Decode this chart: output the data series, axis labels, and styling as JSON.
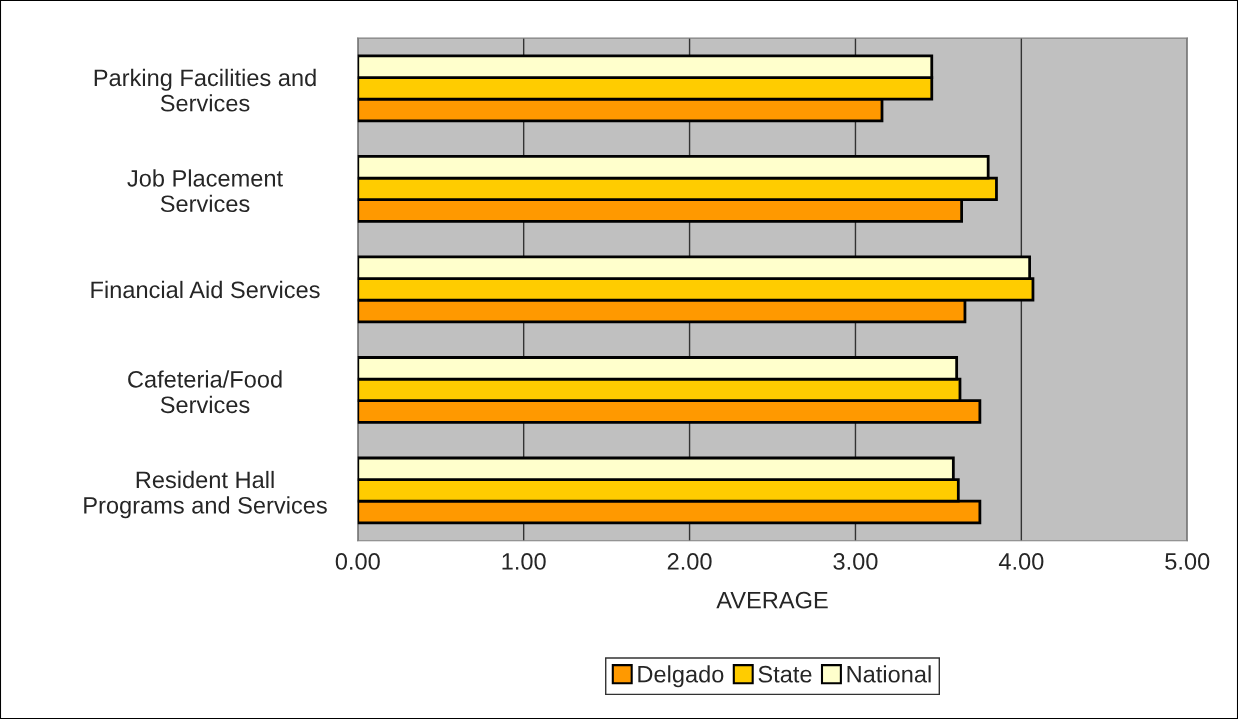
{
  "chart_data": {
    "type": "bar",
    "orientation": "horizontal",
    "xlabel": "AVERAGE",
    "categories": [
      "Parking Facilities and\nServices",
      "Job Placement\nServices",
      "Financial Aid Services",
      "Cafeteria/Food\nServices",
      "Resident Hall\nPrograms and Services"
    ],
    "series": [
      {
        "name": "Delgado",
        "color": "#ff9900",
        "values": [
          3.16,
          3.64,
          3.66,
          3.75,
          3.75
        ]
      },
      {
        "name": "State",
        "color": "#ffcc00",
        "values": [
          3.46,
          3.85,
          4.07,
          3.63,
          3.62
        ]
      },
      {
        "name": "National",
        "color": "#ffffcc",
        "values": [
          3.46,
          3.8,
          4.05,
          3.61,
          3.59
        ]
      }
    ],
    "xlim": [
      0,
      5
    ],
    "xticks": [
      {
        "value": 0,
        "label": "0.00"
      },
      {
        "value": 1,
        "label": "1.00"
      },
      {
        "value": 2,
        "label": "2.00"
      },
      {
        "value": 3,
        "label": "3.00"
      },
      {
        "value": 4,
        "label": "4.00"
      },
      {
        "value": 5,
        "label": "5.00"
      }
    ],
    "grid": "x",
    "legend": "bottom"
  }
}
